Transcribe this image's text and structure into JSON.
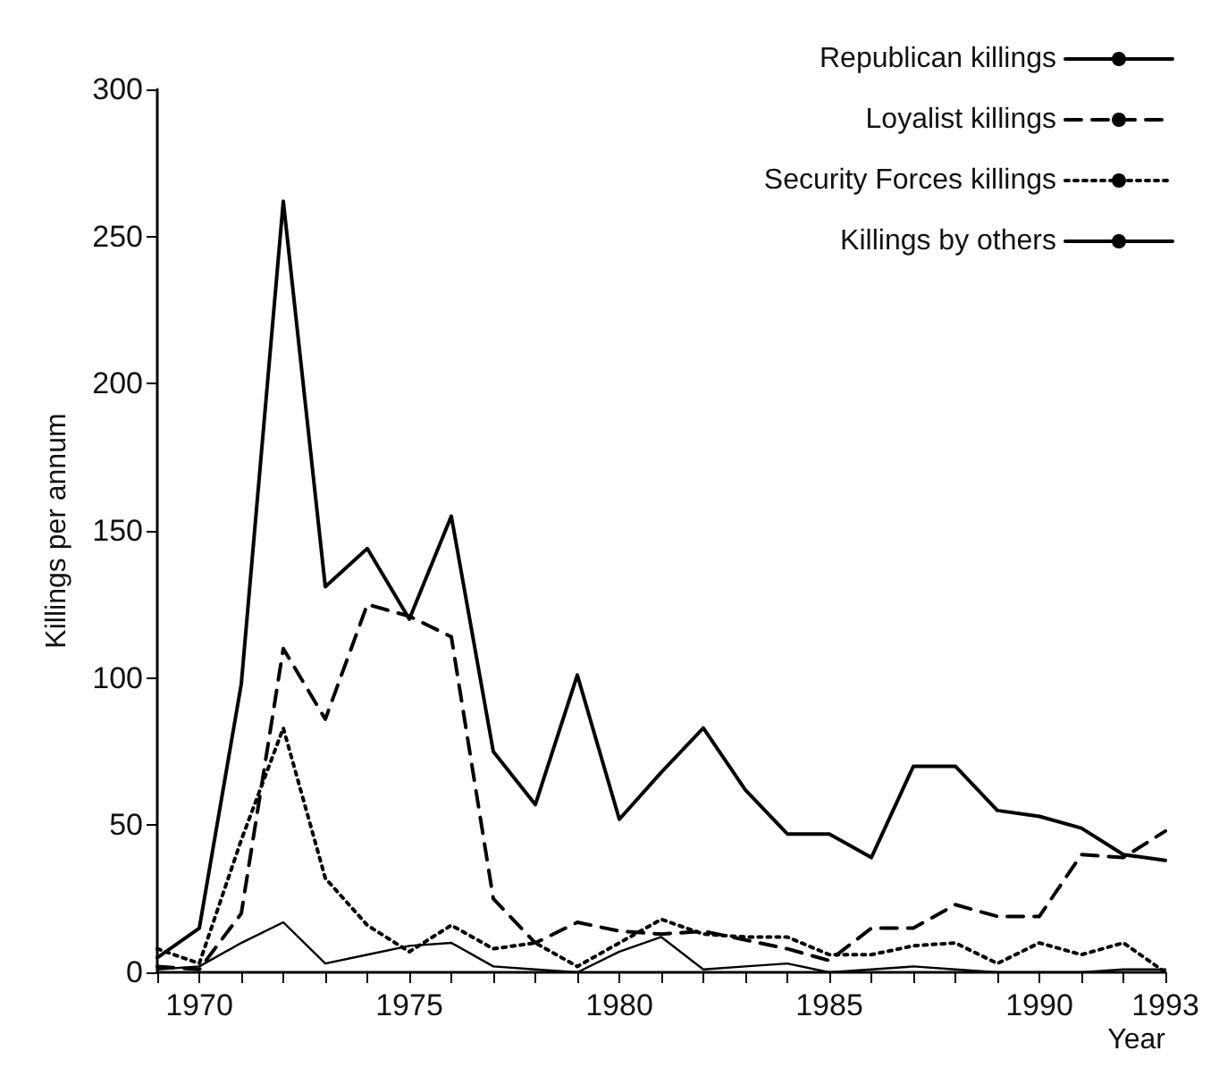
{
  "chart_data": {
    "type": "line",
    "xlabel": "Year",
    "ylabel": "Killings per annum",
    "x": [
      1969,
      1970,
      1971,
      1972,
      1973,
      1974,
      1975,
      1976,
      1977,
      1978,
      1979,
      1980,
      1981,
      1982,
      1983,
      1984,
      1985,
      1986,
      1987,
      1988,
      1989,
      1990,
      1991,
      1992,
      1993
    ],
    "series": [
      {
        "name": "Republican killings",
        "color": "#000000",
        "line_style": "solid",
        "values": [
          5,
          15,
          98,
          262,
          131,
          144,
          120,
          155,
          75,
          57,
          101,
          52,
          68,
          83,
          62,
          47,
          47,
          39,
          70,
          70,
          55,
          53,
          49,
          40,
          38
        ]
      },
      {
        "name": "Loyalist killings",
        "color": "#000000",
        "line_style": "dashed",
        "values": [
          2,
          1,
          20,
          110,
          86,
          125,
          121,
          114,
          25,
          10,
          17,
          14,
          13,
          14,
          11,
          8,
          4,
          15,
          15,
          23,
          19,
          19,
          40,
          39,
          48
        ]
      },
      {
        "name": "Security Forces killings",
        "color": "#000000",
        "line_style": "dotted",
        "values": [
          8,
          3,
          45,
          83,
          32,
          16,
          7,
          16,
          8,
          10,
          2,
          10,
          18,
          13,
          12,
          12,
          6,
          6,
          9,
          10,
          3,
          10,
          6,
          10,
          0
        ]
      },
      {
        "name": "Killings by others",
        "color": "#000000",
        "line_style": "solid",
        "values": [
          1,
          2,
          10,
          17,
          3,
          6,
          9,
          10,
          2,
          1,
          0,
          7,
          12,
          1,
          2,
          3,
          0,
          1,
          2,
          1,
          0,
          0,
          0,
          1,
          1
        ]
      }
    ],
    "xlim": [
      1969,
      1993
    ],
    "xticks": [
      {
        "value": 1969,
        "label": null
      },
      1970,
      {
        "value": 1971,
        "label": null
      },
      {
        "value": 1972,
        "label": null
      },
      {
        "value": 1973,
        "label": null
      },
      {
        "value": 1974,
        "label": null
      },
      1975,
      {
        "value": 1976,
        "label": null
      },
      {
        "value": 1977,
        "label": null
      },
      {
        "value": 1978,
        "label": null
      },
      {
        "value": 1979,
        "label": null
      },
      1980,
      {
        "value": 1981,
        "label": null
      },
      {
        "value": 1982,
        "label": null
      },
      {
        "value": 1983,
        "label": null
      },
      {
        "value": 1984,
        "label": null
      },
      1985,
      {
        "value": 1986,
        "label": null
      },
      {
        "value": 1987,
        "label": null
      },
      {
        "value": 1988,
        "label": null
      },
      {
        "value": 1989,
        "label": null
      },
      1990,
      {
        "value": 1991,
        "label": null
      },
      {
        "value": 1992,
        "label": null
      },
      1993
    ],
    "ylim": [
      0,
      300
    ],
    "yticks": [
      0,
      50,
      100,
      150,
      200,
      250,
      300
    ],
    "grid": false,
    "legend": "top right",
    "marker": "none"
  }
}
